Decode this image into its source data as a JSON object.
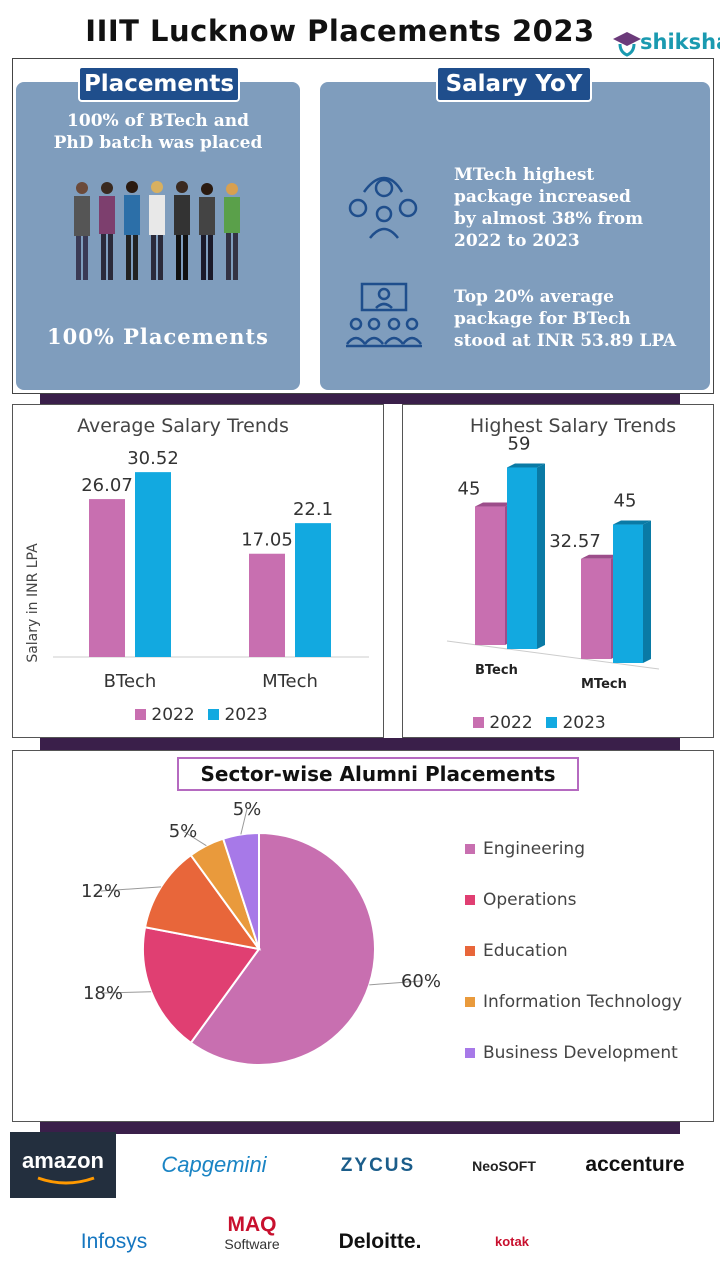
{
  "title": "IIIT Lucknow Placements 2023",
  "logo": {
    "text": "shiksha",
    "icon": "graduate-icon"
  },
  "placements": {
    "tag": "Placements",
    "line1": "100% of BTech and",
    "line2": "PhD batch was placed",
    "footer": "100%  Placements",
    "icon": "people-group-icon"
  },
  "salary_yoy": {
    "tag": "Salary YoY",
    "point1": [
      "MTech highest",
      "package increased",
      "by almost 38% from",
      "2022 to 2023"
    ],
    "point2": [
      "Top 20% average",
      "package for BTech",
      "stood at INR 53.89 LPA"
    ],
    "icon1": "gear-person-icon",
    "icon2": "presentation-icon"
  },
  "chart_data": [
    {
      "type": "bar",
      "title": "Average Salary Trends",
      "ylabel": "Salary in INR LPA",
      "categories": [
        "BTech",
        "MTech"
      ],
      "series": [
        {
          "name": "2022",
          "values": [
            26.07,
            17.05
          ],
          "color": "#c86fb0"
        },
        {
          "name": "2023",
          "values": [
            30.52,
            22.1
          ],
          "color": "#12a9e0"
        }
      ],
      "labels": [
        "26.07",
        "17.05",
        "30.52",
        "22.1"
      ],
      "ylim": [
        0,
        35
      ]
    },
    {
      "type": "bar",
      "title": "Highest Salary Trends",
      "categories": [
        "BTech",
        "MTech"
      ],
      "series": [
        {
          "name": "2022",
          "values": [
            45,
            32.57
          ],
          "color": "#c86fb0"
        },
        {
          "name": "2023",
          "values": [
            59,
            45
          ],
          "color": "#12a9e0"
        }
      ],
      "labels": [
        "45",
        "32.57",
        "59",
        "45"
      ],
      "ylim": [
        0,
        65
      ]
    },
    {
      "type": "pie",
      "title": "Sector-wise Alumni Placements",
      "slices": [
        {
          "name": "Engineering",
          "value": 60,
          "label": "60%",
          "color": "#c86fb0"
        },
        {
          "name": "Operations",
          "value": 18,
          "label": "18%",
          "color": "#e03f72"
        },
        {
          "name": "Education",
          "value": 12,
          "label": "12%",
          "color": "#e8663a"
        },
        {
          "name": "Information Technology",
          "value": 5,
          "label": "5%",
          "color": "#e99a3c"
        },
        {
          "name": "Business Development",
          "value": 5,
          "label": "5%",
          "color": "#a779e8"
        }
      ]
    }
  ],
  "recruiters": [
    "amazon",
    "Capgemini",
    "ZYCUS",
    "NeoSOFT",
    "accenture",
    "Infosys",
    "MAQ",
    "Software",
    "Deloitte.",
    "kotak"
  ],
  "watermark": "shiksha"
}
